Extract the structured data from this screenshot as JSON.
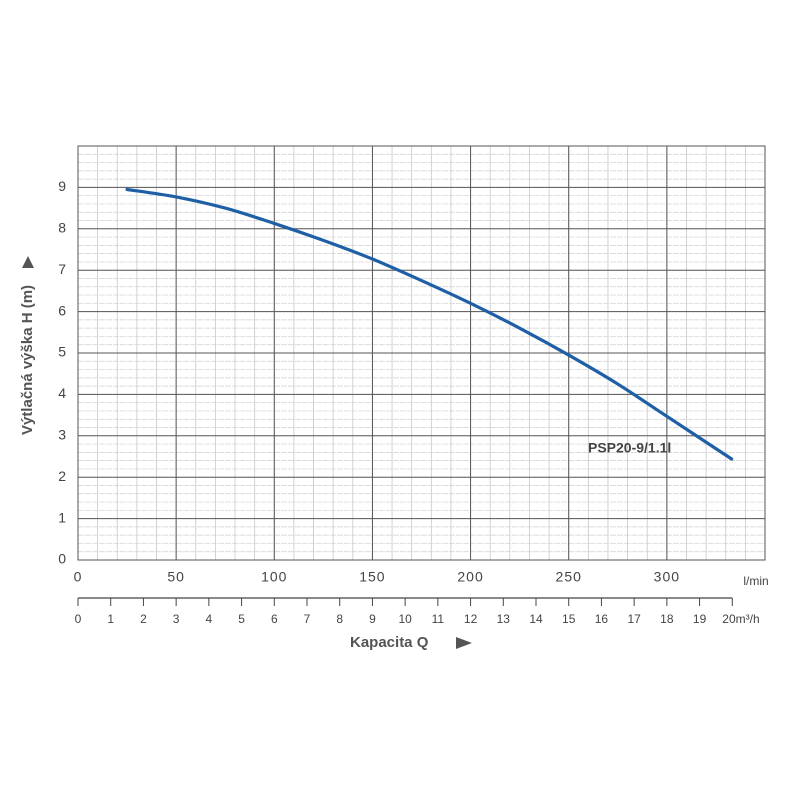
{
  "chart_data": {
    "type": "line",
    "ylabel": "Výtlačná výška H (m)",
    "xlabel": "Kapacita Q",
    "xunit": "l/min",
    "x": [
      25,
      50,
      75,
      100,
      125,
      150,
      175,
      200,
      225,
      250,
      275,
      300,
      333
    ],
    "series": [
      {
        "name": "PSP20-9/1.1l",
        "color": "#1f5fa6",
        "values": [
          8.95,
          8.77,
          8.5,
          8.13,
          7.72,
          7.27,
          6.75,
          6.2,
          5.6,
          4.95,
          4.25,
          3.47,
          2.44
        ]
      }
    ],
    "xlim": [
      0,
      350
    ],
    "xticks": [
      0,
      50,
      100,
      150,
      200,
      250,
      300
    ],
    "ylim": [
      0,
      10
    ],
    "yticks": [
      0,
      1,
      2,
      3,
      4,
      5,
      6,
      7,
      8,
      9
    ],
    "x2lim": [
      0,
      21
    ],
    "x2ticks": [
      0,
      1,
      2,
      3,
      4,
      5,
      6,
      7,
      8,
      9,
      10,
      11,
      12,
      13,
      14,
      15,
      16,
      17,
      18,
      19,
      {
        "value": 20,
        "label": "20m³/h"
      }
    ],
    "grid": true,
    "minor_grid": {
      "x": 10,
      "y": 0.2
    }
  }
}
